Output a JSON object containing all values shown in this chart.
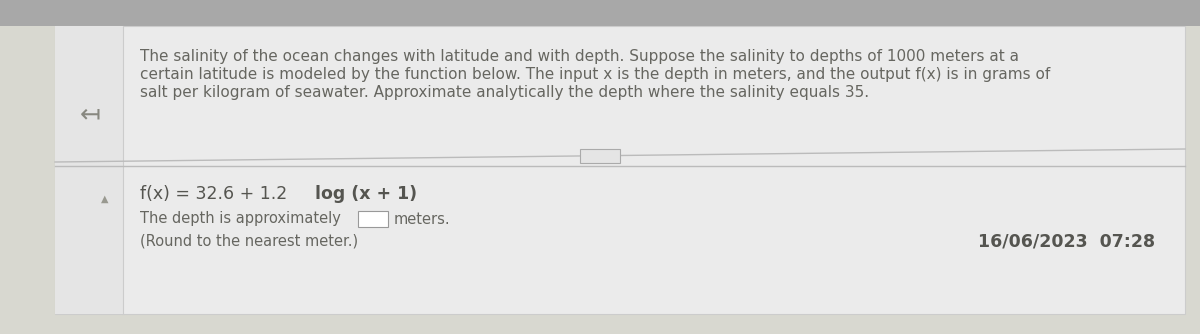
{
  "bg_top_color": "#a8a8a8",
  "bg_main_color": "#d8d8d0",
  "panel_color": "#e2e2da",
  "text_color": "#666660",
  "text_color_dark": "#555550",
  "title_text_line1": "The salinity of the ocean changes with latitude and with depth. Suppose the salinity to depths of 1000 meters at a",
  "title_text_line2": "certain latitude is modeled by the function below. The input x is the depth in meters, and the output f(x) is in grams of",
  "title_text_line3": "salt per kilogram of seawater. Approximate analytically the depth where the salinity equals 35.",
  "formula_normal": "f(x) = 32.6 + 1.2 ",
  "formula_bold": "log (x + 1)",
  "answer_text": "The depth is approximately",
  "answer_suffix": "meters.",
  "round_text": "(Round to the nearest meter.)",
  "timestamp": "16/06/2023  07:28",
  "arrow_char": "↤",
  "title_fontsize": 11.0,
  "formula_fontsize": 12.5,
  "answer_fontsize": 10.5,
  "timestamp_fontsize": 12.5
}
